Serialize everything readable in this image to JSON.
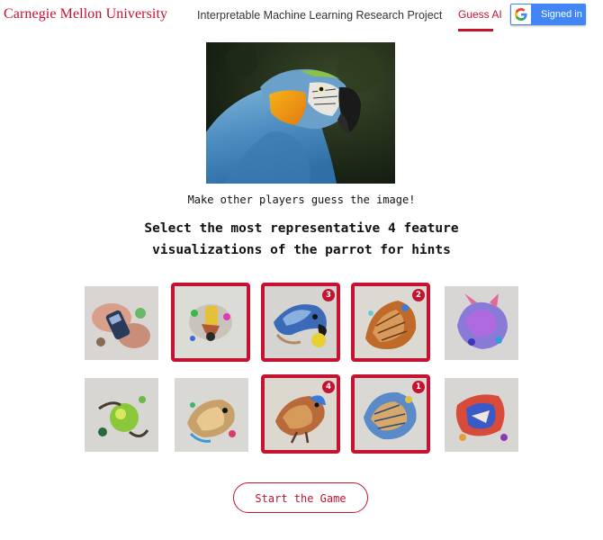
{
  "header": {
    "brand": "Carnegie Mellon University",
    "project_title": "Interpretable Machine Learning Research Project",
    "nav_item": "Guess AI",
    "signin_label": "Signed in"
  },
  "game": {
    "instruction_top": "Make other players guess the image!",
    "instruction_line1": "Select the most representative 4 feature",
    "instruction_line2": "visualizations of the parrot for hints",
    "start_label": "Start the Game"
  },
  "features": [
    {
      "selected": false,
      "order": ""
    },
    {
      "selected": true,
      "order": ""
    },
    {
      "selected": true,
      "order": "3"
    },
    {
      "selected": true,
      "order": "2"
    },
    {
      "selected": false,
      "order": ""
    },
    {
      "selected": false,
      "order": ""
    },
    {
      "selected": false,
      "order": ""
    },
    {
      "selected": true,
      "order": "4"
    },
    {
      "selected": true,
      "order": "1"
    },
    {
      "selected": false,
      "order": ""
    }
  ],
  "colors": {
    "accent": "#c41230",
    "google_blue": "#4285f4"
  }
}
